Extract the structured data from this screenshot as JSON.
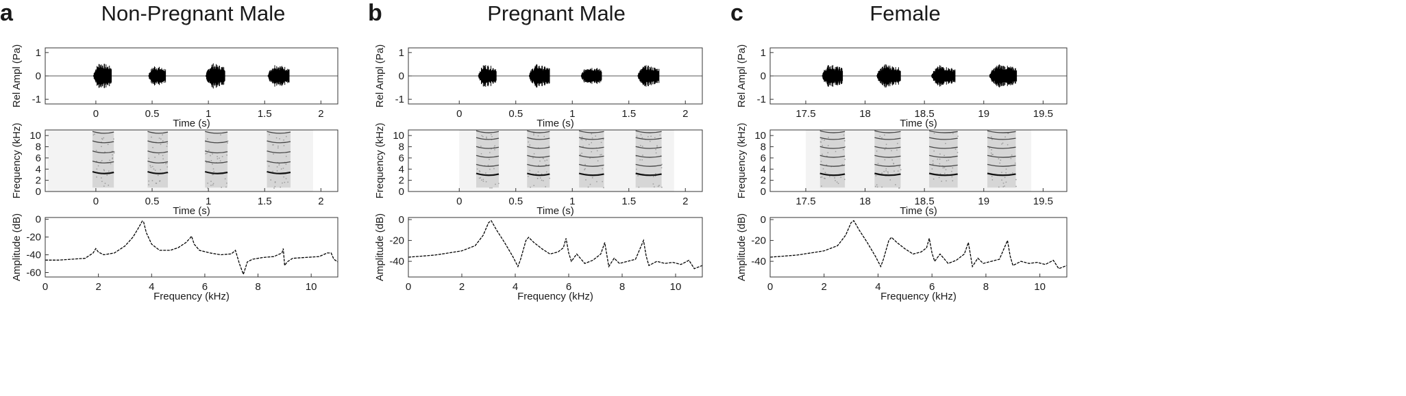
{
  "panels": [
    {
      "letter": "a",
      "title": "Non-Pregnant Male"
    },
    {
      "letter": "b",
      "title": "Pregnant Male"
    },
    {
      "letter": "c",
      "title": "Female"
    }
  ],
  "chart_data": [
    {
      "panel": "a",
      "row": "waveform",
      "type": "line",
      "ylabel": "Rel Ampl (Pa)",
      "xlabel": "Time (s)",
      "xlim": [
        -0.45,
        2.15
      ],
      "ylim": [
        -1.2,
        1.2
      ],
      "xticks": [
        0,
        0.5,
        1,
        1.5,
        2
      ],
      "xticklabels": [
        "0",
        "0.5",
        "1",
        "1.5",
        "2"
      ],
      "yticks": [
        -1,
        0,
        1
      ],
      "yticklabels": [
        "-1",
        "0",
        "1"
      ],
      "bursts": [
        [
          -0.02,
          0.14,
          0.65
        ],
        [
          0.47,
          0.62,
          0.48
        ],
        [
          0.98,
          1.15,
          0.6
        ],
        [
          1.53,
          1.72,
          0.55
        ]
      ]
    },
    {
      "panel": "a",
      "row": "spectrogram",
      "type": "heatmap",
      "ylabel": "Frequency (kHz)",
      "xlabel": "Time (s)",
      "xlim": [
        -0.45,
        2.15
      ],
      "ylim": [
        0,
        11
      ],
      "xticks": [
        0,
        0.5,
        1,
        1.5,
        2
      ],
      "xticklabels": [
        "0",
        "0.5",
        "1",
        "1.5",
        "2"
      ],
      "yticks": [
        0,
        2,
        4,
        6,
        8,
        10
      ],
      "yticklabels": [
        "0",
        "2",
        "4",
        "6",
        "8",
        "10"
      ],
      "shade_range": [
        -0.43,
        1.93
      ],
      "calls": [
        [
          -0.03,
          0.16
        ],
        [
          0.46,
          0.64
        ],
        [
          0.97,
          1.17
        ],
        [
          1.52,
          1.73
        ]
      ],
      "harmonics_khz": [
        3.3,
        5.2,
        7.0,
        8.8,
        10.5
      ]
    },
    {
      "panel": "a",
      "row": "spectrum",
      "type": "line",
      "ylabel": "Amplitude (dB)",
      "xlabel": "Frequency (kHz)",
      "xlim": [
        0,
        11
      ],
      "ylim": [
        -65,
        2
      ],
      "xticks": [
        0,
        2,
        4,
        6,
        8,
        10
      ],
      "xticklabels": [
        "0",
        "2",
        "4",
        "6",
        "8",
        "10"
      ],
      "yticks": [
        0,
        -20,
        -40,
        -60
      ],
      "yticklabels": [
        "0",
        "-20",
        "-40",
        "-60"
      ],
      "x": [
        0,
        0.5,
        1.0,
        1.5,
        1.8,
        1.9,
        2.0,
        2.2,
        2.6,
        3.0,
        3.3,
        3.5,
        3.65,
        3.7,
        3.8,
        4.0,
        4.3,
        4.7,
        5.0,
        5.3,
        5.45,
        5.5,
        5.6,
        5.8,
        6.2,
        6.6,
        7.0,
        7.15,
        7.3,
        7.45,
        7.6,
        7.8,
        8.2,
        8.6,
        8.9,
        8.95,
        9.0,
        9.1,
        9.3,
        9.8,
        10.3,
        10.6,
        10.75,
        10.85,
        11.0
      ],
      "y": [
        -46,
        -46,
        -45,
        -44,
        -38,
        -33,
        -37,
        -40,
        -38,
        -30,
        -20,
        -10,
        -2,
        -3,
        -15,
        -28,
        -35,
        -35,
        -32,
        -26,
        -21,
        -19,
        -28,
        -35,
        -38,
        -40,
        -39,
        -35,
        -50,
        -62,
        -48,
        -45,
        -43,
        -42,
        -38,
        -33,
        -52,
        -48,
        -44,
        -43,
        -42,
        -38,
        -38,
        -45,
        -48
      ]
    },
    {
      "panel": "b",
      "row": "waveform",
      "type": "line",
      "ylabel": "Rel Ampl (Pa)",
      "xlabel": "Time (s)",
      "xlim": [
        -0.45,
        2.15
      ],
      "ylim": [
        -1.2,
        1.2
      ],
      "xticks": [
        0,
        0.5,
        1,
        1.5,
        2
      ],
      "xticklabels": [
        "0",
        "0.5",
        "1",
        "1.5",
        "2"
      ],
      "yticks": [
        -1,
        0,
        1
      ],
      "yticklabels": [
        "-1",
        "0",
        "1"
      ],
      "bursts": [
        [
          0.17,
          0.33,
          0.55
        ],
        [
          0.62,
          0.8,
          0.55
        ],
        [
          1.08,
          1.26,
          0.45
        ],
        [
          1.58,
          1.77,
          0.5
        ]
      ]
    },
    {
      "panel": "b",
      "row": "spectrogram",
      "type": "heatmap",
      "ylabel": "Frequency (kHz)",
      "xlabel": "Time (s)",
      "xlim": [
        -0.45,
        2.15
      ],
      "ylim": [
        0,
        11
      ],
      "xticks": [
        0,
        0.5,
        1,
        1.5,
        2
      ],
      "xticklabels": [
        "0",
        "0.5",
        "1",
        "1.5",
        "2"
      ],
      "yticks": [
        0,
        2,
        4,
        6,
        8,
        10
      ],
      "yticklabels": [
        "0",
        "2",
        "4",
        "6",
        "8",
        "10"
      ],
      "shade_range": [
        0.0,
        1.9
      ],
      "calls": [
        [
          0.15,
          0.35
        ],
        [
          0.6,
          0.8
        ],
        [
          1.06,
          1.28
        ],
        [
          1.56,
          1.79
        ]
      ],
      "harmonics_khz": [
        3.0,
        4.6,
        6.2,
        7.8,
        9.4,
        10.6
      ]
    },
    {
      "panel": "b",
      "row": "spectrum",
      "type": "line",
      "ylabel": "Amplitude (dB)",
      "xlabel": "Frequency (kHz)",
      "xlim": [
        0,
        11
      ],
      "ylim": [
        -55,
        2
      ],
      "xticks": [
        0,
        2,
        4,
        6,
        8,
        10
      ],
      "xticklabels": [
        "0",
        "2",
        "4",
        "6",
        "8",
        "10"
      ],
      "yticks": [
        0,
        -20,
        -40
      ],
      "yticklabels": [
        "0",
        "-20",
        "-40"
      ],
      "x": [
        0,
        0.5,
        1.0,
        1.5,
        2.0,
        2.5,
        2.8,
        3.0,
        3.1,
        3.3,
        3.6,
        3.9,
        4.1,
        4.2,
        4.4,
        4.5,
        4.7,
        5.0,
        5.3,
        5.6,
        5.8,
        5.9,
        6.0,
        6.1,
        6.3,
        6.6,
        6.9,
        7.2,
        7.35,
        7.5,
        7.7,
        7.9,
        8.2,
        8.5,
        8.8,
        8.9,
        9.0,
        9.3,
        9.6,
        9.9,
        10.2,
        10.5,
        10.7,
        11.0
      ],
      "y": [
        -36,
        -35,
        -34,
        -32,
        -30,
        -25,
        -15,
        -3,
        -1,
        -10,
        -22,
        -35,
        -45,
        -38,
        -20,
        -17,
        -22,
        -28,
        -33,
        -31,
        -27,
        -18,
        -32,
        -40,
        -33,
        -42,
        -39,
        -33,
        -22,
        -45,
        -37,
        -42,
        -40,
        -38,
        -20,
        -35,
        -44,
        -40,
        -42,
        -41,
        -43,
        -39,
        -47,
        -44
      ]
    },
    {
      "panel": "c",
      "row": "waveform",
      "type": "line",
      "ylabel": "Rel Ampl (Pa)",
      "xlabel": "Time (s)",
      "xlim": [
        17.2,
        19.7
      ],
      "ylim": [
        -1.2,
        1.2
      ],
      "xticks": [
        17.5,
        18,
        18.5,
        19,
        19.5
      ],
      "xticklabels": [
        "17.5",
        "18",
        "18.5",
        "19",
        "19.5"
      ],
      "yticks": [
        -1,
        0,
        1
      ],
      "yticklabels": [
        "-1",
        "0",
        "1"
      ],
      "bursts": [
        [
          17.64,
          17.81,
          0.55
        ],
        [
          18.1,
          18.3,
          0.55
        ],
        [
          18.56,
          18.76,
          0.48
        ],
        [
          19.05,
          19.28,
          0.55
        ]
      ]
    },
    {
      "panel": "c",
      "row": "spectrogram",
      "type": "heatmap",
      "ylabel": "Frequency (kHz)",
      "xlabel": "Time (s)",
      "xlim": [
        17.2,
        19.7
      ],
      "ylim": [
        0,
        11
      ],
      "xticks": [
        17.5,
        18,
        18.5,
        19,
        19.5
      ],
      "xticklabels": [
        "17.5",
        "18",
        "18.5",
        "19",
        "19.5"
      ],
      "yticks": [
        0,
        2,
        4,
        6,
        8,
        10
      ],
      "yticklabels": [
        "0",
        "2",
        "4",
        "6",
        "8",
        "10"
      ],
      "shade_range": [
        17.5,
        19.4
      ],
      "calls": [
        [
          17.62,
          17.83
        ],
        [
          18.08,
          18.3
        ],
        [
          18.54,
          18.78
        ],
        [
          19.03,
          19.27
        ]
      ],
      "harmonics_khz": [
        3.0,
        4.6,
        6.2,
        7.8,
        9.4,
        10.6
      ]
    },
    {
      "panel": "c",
      "row": "spectrum",
      "type": "line",
      "ylabel": "Amplitude (dB)",
      "xlabel": "Frequency (kHz)",
      "xlim": [
        0,
        11
      ],
      "ylim": [
        -55,
        2
      ],
      "xticks": [
        0,
        2,
        4,
        6,
        8,
        10
      ],
      "xticklabels": [
        "0",
        "2",
        "4",
        "6",
        "8",
        "10"
      ],
      "yticks": [
        0,
        -20,
        -40
      ],
      "yticklabels": [
        "0",
        "-20",
        "-40"
      ],
      "x": [
        0,
        0.5,
        1.0,
        1.5,
        2.0,
        2.5,
        2.8,
        3.0,
        3.1,
        3.3,
        3.6,
        3.9,
        4.1,
        4.2,
        4.4,
        4.5,
        4.7,
        5.0,
        5.3,
        5.6,
        5.8,
        5.9,
        6.0,
        6.1,
        6.3,
        6.6,
        6.9,
        7.2,
        7.35,
        7.5,
        7.7,
        7.9,
        8.2,
        8.5,
        8.8,
        8.9,
        9.0,
        9.3,
        9.6,
        9.9,
        10.2,
        10.5,
        10.7,
        11.0
      ],
      "y": [
        -36,
        -35,
        -34,
        -32,
        -30,
        -25,
        -15,
        -3,
        -1,
        -10,
        -22,
        -35,
        -45,
        -38,
        -20,
        -17,
        -22,
        -28,
        -33,
        -31,
        -27,
        -18,
        -32,
        -40,
        -33,
        -42,
        -39,
        -33,
        -22,
        -45,
        -37,
        -42,
        -40,
        -38,
        -20,
        -35,
        -44,
        -40,
        -42,
        -41,
        -43,
        -39,
        -47,
        -44
      ]
    }
  ]
}
